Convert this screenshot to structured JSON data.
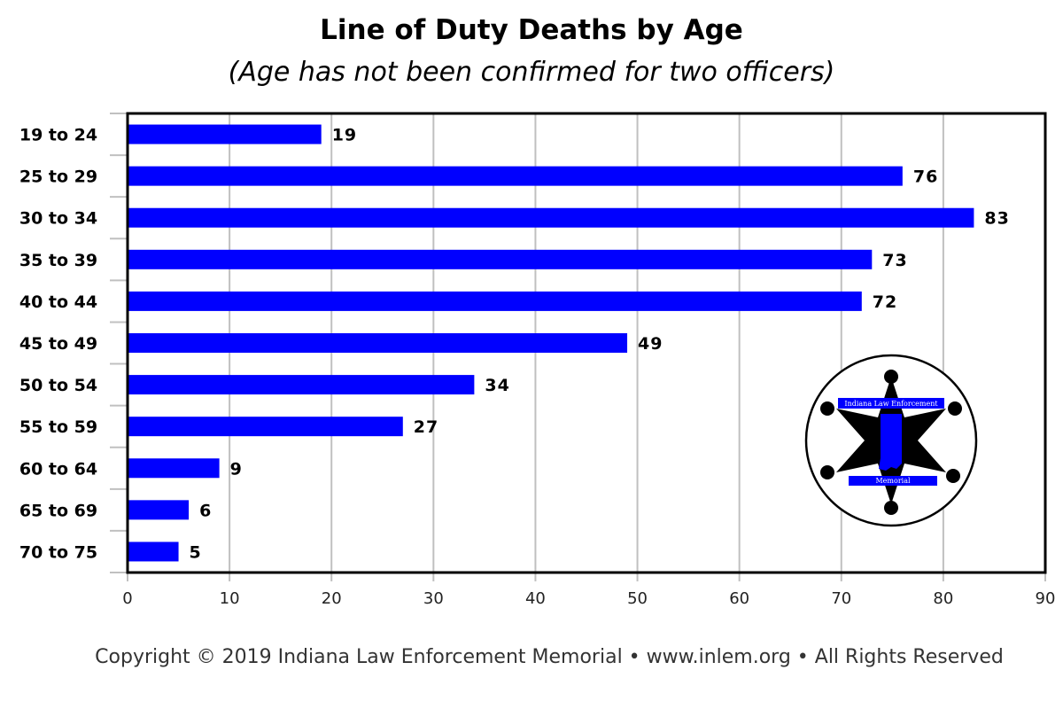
{
  "chart_data": {
    "type": "bar",
    "orientation": "horizontal",
    "title": "Line of Duty Deaths by Age",
    "subtitle": "(Age has not been confirmed for two officers)",
    "categories": [
      "19 to 24",
      "25 to 29",
      "30 to 34",
      "35 to 39",
      "40 to 44",
      "45 to 49",
      "50 to 54",
      "55 to 59",
      "60 to 64",
      "65 to 69",
      "70 to 75"
    ],
    "values": [
      19,
      76,
      83,
      73,
      72,
      49,
      34,
      27,
      9,
      6,
      5
    ],
    "xlim": [
      0,
      90
    ],
    "xticks": [
      0,
      10,
      20,
      30,
      40,
      50,
      60,
      70,
      80,
      90
    ],
    "xlabel": "",
    "ylabel": "",
    "grid": true,
    "bar_color": "#0000ff",
    "data_labels": true
  },
  "logo": {
    "top_text": "Indiana Law Enforcement",
    "bottom_text": "Memorial",
    "colors": {
      "star": "#000000",
      "banner": "#0000ff",
      "state": "#0000ff"
    }
  },
  "footer": {
    "text": "Copyright © 2019 Indiana Law Enforcement Memorial • www.inlem.org • All Rights Reserved"
  }
}
